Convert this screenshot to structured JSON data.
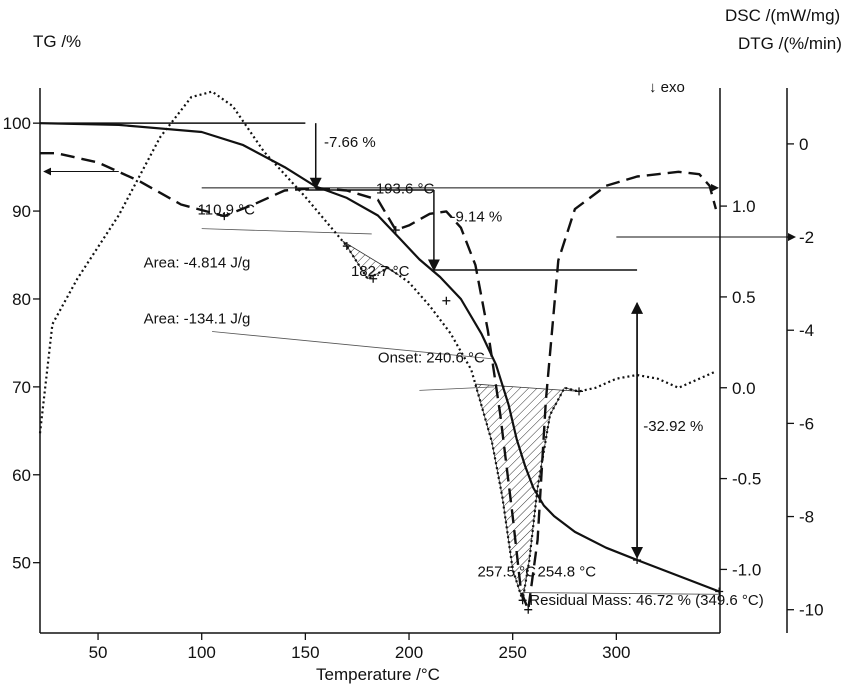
{
  "chart_data": {
    "type": "line",
    "title": "",
    "xlabel": "Temperature /°C",
    "xlim": [
      22,
      350
    ],
    "xticks": [
      50,
      100,
      150,
      200,
      250,
      300
    ],
    "axes": {
      "tg": {
        "label": "TG /%",
        "lim": [
          42,
          104
        ],
        "ticks": [
          50,
          60,
          70,
          80,
          90,
          100
        ]
      },
      "dsc": {
        "label": "DSC /(mW/mg)",
        "lim": [
          -1.35,
          1.65
        ],
        "ticks": [
          -1.0,
          -0.5,
          0.0,
          0.5,
          1.0
        ],
        "tick_labels": [
          "-1.0",
          "-0.5",
          "0.0",
          "0.5",
          "1.0"
        ]
      },
      "dtg": {
        "label": "DTG /(%/min)",
        "lim": [
          -10.5,
          1.2
        ],
        "ticks": [
          -10,
          -8,
          -6,
          -4,
          -2,
          0
        ]
      }
    },
    "exo_label": "↓ exo",
    "series": [
      {
        "axis": "tg",
        "style": "solid",
        "x": [
          22,
          60,
          100,
          120,
          140,
          155,
          170,
          185,
          195,
          205,
          215,
          225,
          235,
          242,
          248,
          252,
          256,
          260,
          265,
          270,
          280,
          295,
          310,
          330,
          349.6
        ],
        "y": [
          100,
          99.8,
          99.0,
          97.5,
          95.0,
          92.8,
          91.5,
          89.5,
          87.0,
          84.5,
          82.5,
          80.0,
          76.0,
          72.5,
          68.0,
          64.0,
          61.0,
          58.5,
          56.5,
          55.3,
          53.5,
          51.7,
          50.3,
          48.5,
          46.72
        ]
      },
      {
        "axis": "dsc",
        "style": "dotted",
        "x": [
          22,
          28,
          40,
          60,
          80,
          95,
          105,
          115,
          130,
          150,
          170,
          180,
          190,
          200,
          210,
          220,
          230,
          240,
          245,
          250,
          254.8,
          258,
          262,
          268,
          275,
          282,
          290,
          300,
          310,
          320,
          330,
          340,
          348
        ],
        "y": [
          -0.25,
          0.35,
          0.6,
          0.95,
          1.38,
          1.6,
          1.63,
          1.55,
          1.3,
          1.05,
          0.78,
          0.6,
          0.66,
          0.58,
          0.45,
          0.3,
          0.1,
          -0.3,
          -0.6,
          -1.0,
          -1.17,
          -0.95,
          -0.55,
          -0.15,
          0.0,
          -0.02,
          0.0,
          0.05,
          0.07,
          0.05,
          0.0,
          0.05,
          0.09
        ]
      },
      {
        "axis": "dtg",
        "style": "dashed",
        "x": [
          22,
          30,
          50,
          70,
          90,
          110.9,
          125,
          140,
          155,
          170,
          185,
          193.6,
          200,
          210,
          218,
          225,
          232,
          238,
          244,
          250,
          254,
          257.5,
          262,
          266,
          272,
          280,
          295,
          310,
          320,
          330,
          340,
          345,
          348
        ],
        "y": [
          -0.2,
          -0.2,
          -0.4,
          -0.8,
          -1.3,
          -1.55,
          -1.3,
          -1.0,
          -0.95,
          -1.0,
          -1.2,
          -1.85,
          -1.75,
          -1.5,
          -1.45,
          -1.8,
          -2.6,
          -4.0,
          -5.8,
          -8.0,
          -9.6,
          -10.0,
          -8.5,
          -5.5,
          -2.5,
          -1.4,
          -0.9,
          -0.7,
          -0.65,
          -0.6,
          -0.65,
          -0.9,
          -1.4
        ]
      }
    ],
    "annotations": {
      "tg_step1": "-7.66 %",
      "tg_step2": "-9.14 %",
      "tg_step3": "-32.92 %",
      "dtg_peak1": "110.9 °C",
      "dtg_peak2": "193.6 °C",
      "dsc_peak1": "182.7 °C",
      "dsc_area1": "Area: -4.814 J/g",
      "dsc_area2": "Area: -134.1 J/g",
      "dsc_onset": "Onset: 240.6 °C",
      "dtg_peak3": "257.5 °C",
      "dsc_peak2": "254.8 °C",
      "residual": "Residual Mass: 46.72 % (349.6 °C)"
    }
  }
}
